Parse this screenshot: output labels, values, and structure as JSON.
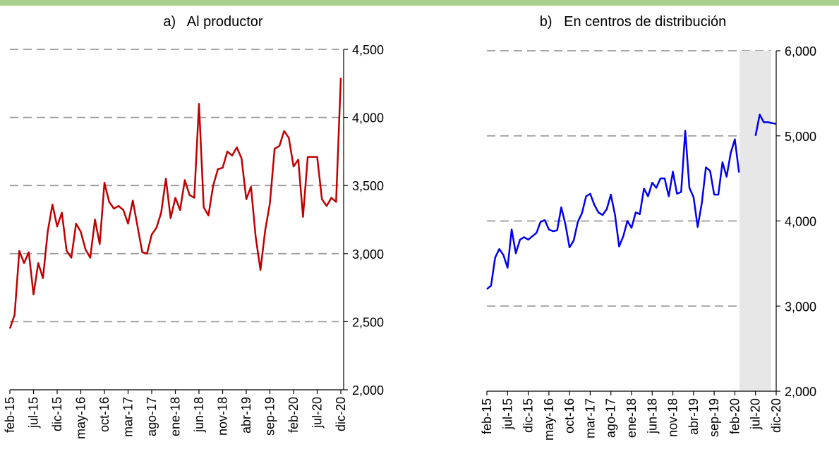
{
  "chart_data": [
    {
      "type": "line",
      "title": "a)   Al productor",
      "categories": [
        "feb-15",
        null,
        null,
        null,
        null,
        "jul-15",
        null,
        null,
        null,
        null,
        "dic-15",
        null,
        null,
        null,
        null,
        "may-16",
        null,
        null,
        null,
        null,
        "oct-16",
        null,
        null,
        null,
        null,
        "mar-17",
        null,
        null,
        null,
        null,
        "ago-17",
        null,
        null,
        null,
        null,
        "ene-18",
        null,
        null,
        null,
        null,
        "jun-18",
        null,
        null,
        null,
        null,
        "nov-18",
        null,
        null,
        null,
        null,
        "abr-19",
        null,
        null,
        null,
        null,
        "sep-19",
        null,
        null,
        null,
        null,
        "feb-20",
        null,
        null,
        null,
        null,
        "jul-20",
        null,
        null,
        null,
        null,
        "dic-20"
      ],
      "series": [
        {
          "color": "#c00000",
          "values": [
            2450,
            2550,
            3020,
            2930,
            3010,
            2700,
            2930,
            2820,
            3160,
            3360,
            3200,
            3300,
            3020,
            2970,
            3220,
            3160,
            3030,
            2970,
            3250,
            3070,
            3520,
            3380,
            3330,
            3350,
            3320,
            3220,
            3390,
            3200,
            3010,
            3000,
            3140,
            3190,
            3300,
            3550,
            3260,
            3410,
            3320,
            3540,
            3430,
            3410,
            4100,
            3340,
            3280,
            3500,
            3620,
            3630,
            3750,
            3720,
            3780,
            3700,
            3400,
            3490,
            3120,
            2880,
            3170,
            3370,
            3770,
            3790,
            3900,
            3850,
            3640,
            3690,
            3270,
            3710,
            3710,
            3710,
            3400,
            3350,
            3410,
            3380,
            4290
          ]
        }
      ],
      "ylim": [
        2000,
        4500
      ],
      "yticks": [
        {
          "value": 2000,
          "label": "2,000"
        },
        {
          "value": 2500,
          "label": "2,500"
        },
        {
          "value": 3000,
          "label": "3,000"
        },
        {
          "value": 3500,
          "label": "3,500"
        },
        {
          "value": 4000,
          "label": "4,000"
        },
        {
          "value": 4500,
          "label": "4,500"
        }
      ],
      "grid": true
    },
    {
      "type": "line",
      "title": "b)   En centros de distribución",
      "categories": [
        "feb-15",
        null,
        null,
        null,
        null,
        "jul-15",
        null,
        null,
        null,
        null,
        "dic-15",
        null,
        null,
        null,
        null,
        "may-16",
        null,
        null,
        null,
        null,
        "oct-16",
        null,
        null,
        null,
        null,
        "mar-17",
        null,
        null,
        null,
        null,
        "ago-17",
        null,
        null,
        null,
        null,
        "ene-18",
        null,
        null,
        null,
        null,
        "jun-18",
        null,
        null,
        null,
        null,
        "nov-18",
        null,
        null,
        null,
        null,
        "abr-19",
        null,
        null,
        null,
        null,
        "sep-19",
        null,
        null,
        null,
        null,
        "feb-20",
        null,
        null,
        null,
        null,
        "jul-20",
        null,
        null,
        null,
        null,
        "dic-20"
      ],
      "series": [
        {
          "color": "#0000ee",
          "values": [
            3200,
            3240,
            3570,
            3670,
            3600,
            3450,
            3900,
            3620,
            3780,
            3810,
            3780,
            3820,
            3860,
            3990,
            4010,
            3900,
            3880,
            3890,
            4160,
            3960,
            3690,
            3770,
            3990,
            4090,
            4290,
            4320,
            4190,
            4100,
            4070,
            4140,
            4310,
            4070,
            3700,
            3820,
            4000,
            3920,
            4100,
            4080,
            4380,
            4290,
            4450,
            4390,
            4500,
            4500,
            4290,
            4580,
            4320,
            4340,
            5060,
            4390,
            4280,
            3930,
            4210,
            4630,
            4590,
            4310,
            4310,
            4690,
            4520,
            4800,
            4960,
            4570,
            null,
            null,
            null,
            5000,
            5250,
            5160,
            5160,
            5150,
            5140
          ]
        }
      ],
      "ylim": [
        2000,
        6000
      ],
      "yticks": [
        {
          "value": 2000,
          "label": "2,000"
        },
        {
          "value": 3000,
          "label": "3,000"
        },
        {
          "value": 4000,
          "label": "4,000"
        },
        {
          "value": 5000,
          "label": "5,000"
        },
        {
          "value": 6000,
          "label": "6,000"
        }
      ],
      "grid": true
    }
  ]
}
